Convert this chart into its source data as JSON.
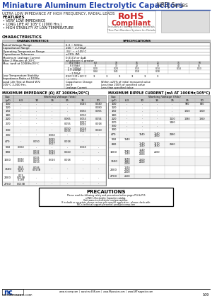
{
  "title": "Miniature Aluminum Electrolytic Capacitors",
  "series": "NRSJ Series",
  "subtitle": "ULTRA LOW IMPEDANCE AT HIGH FREQUENCY, RADIAL LEADS",
  "features": [
    "VERY LOW IMPEDANCE",
    "LONG LIFE AT 105°C (2000 Hrs.)",
    "HIGH STABILITY AT LOW TEMPERATURE"
  ],
  "bg_color": "#ffffff",
  "title_color": "#2244aa",
  "series_color": "#333333",
  "rohs_red": "#cc2222",
  "bold_color": "#000000"
}
